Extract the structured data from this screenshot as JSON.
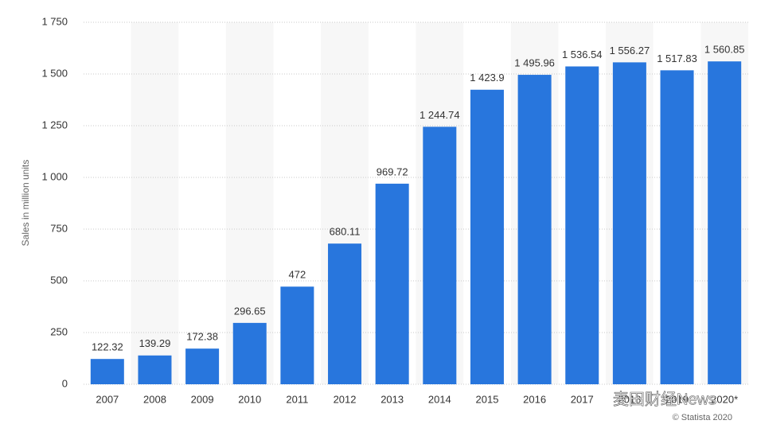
{
  "chart_data": {
    "type": "bar",
    "y_label": "Sales in million units",
    "categories": [
      "2007",
      "2008",
      "2009",
      "2010",
      "2011",
      "2012",
      "2013",
      "2014",
      "2015",
      "2016",
      "2017",
      "2018",
      "2019",
      "2020*"
    ],
    "values": [
      122.32,
      139.29,
      172.38,
      296.65,
      472,
      680.11,
      969.72,
      1244.74,
      1423.9,
      1495.96,
      1536.54,
      1556.27,
      1517.83,
      1560.85
    ],
    "value_labels": [
      "122.32",
      "139.29",
      "172.38",
      "296.65",
      "472",
      "680.11",
      "969.72",
      "1 244.74",
      "1 423.9",
      "1 495.96",
      "1 536.54",
      "1 556.27",
      "1 517.83",
      "1 560.85"
    ],
    "color": "#2876dd",
    "ylim": [
      0,
      1750
    ],
    "yticks": [
      0,
      250,
      500,
      750,
      {
        "value": 1000,
        "label": "1 000"
      },
      {
        "value": 1250,
        "label": "1 250"
      },
      {
        "value": 1500,
        "label": "1 500"
      },
      {
        "value": 1750,
        "label": "1 750"
      }
    ],
    "grid": true,
    "source": "© Statista 2020",
    "watermark": "麦田财经News"
  }
}
